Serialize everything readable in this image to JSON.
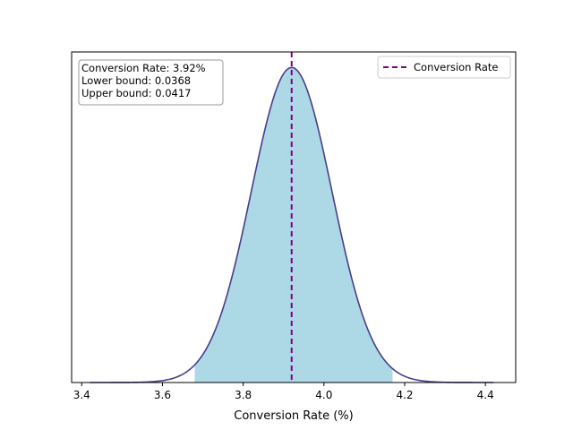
{
  "chart_data": {
    "type": "area",
    "xlabel": "Conversion Rate (%)",
    "ylabel": "",
    "xlim": [
      3.375,
      4.475
    ],
    "x_ticks": [
      3.4,
      3.6,
      3.8,
      4.0,
      4.2,
      4.4
    ],
    "x_tick_labels": [
      "3.4",
      "3.6",
      "3.8",
      "4.0",
      "4.2",
      "4.4"
    ],
    "y_ticks_visible": false,
    "distribution": {
      "kind": "normal",
      "mean": 3.92,
      "std": 0.1,
      "x_range": [
        3.42,
        4.42
      ]
    },
    "shaded_interval": [
      3.68,
      4.17
    ],
    "vline": {
      "x": 3.92,
      "style": "dashed"
    },
    "annotation_box": {
      "lines": [
        "Conversion Rate: 3.92%",
        "Lower bound: 0.0368",
        "Upper bound: 0.0417"
      ],
      "placement": "top-left"
    },
    "legend": {
      "entries": [
        {
          "label": "Conversion Rate",
          "style": "dashed"
        }
      ],
      "placement": "top-right"
    },
    "colors": {
      "curve": "#483d8b",
      "fill": "#add8e6",
      "vline": "#800080",
      "axes": "#000000",
      "box_border": "#999999"
    }
  }
}
